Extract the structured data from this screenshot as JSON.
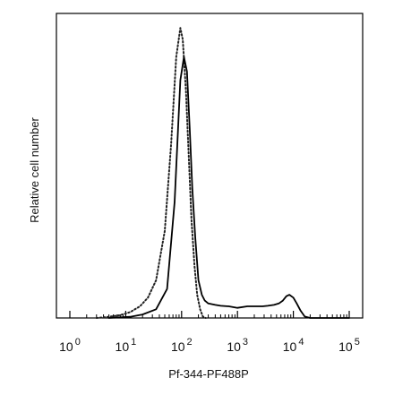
{
  "chart_data": {
    "type": "line",
    "title": "",
    "xlabel": "Pf-344-PF488P",
    "ylabel": "Relative cell number",
    "x_scale": "log",
    "xlim": [
      1,
      100000
    ],
    "ylim": [
      0,
      1.05
    ],
    "grid": false,
    "legend": "none",
    "x_ticks": [
      {
        "base": "10",
        "exp": "0"
      },
      {
        "base": "10",
        "exp": "1"
      },
      {
        "base": "10",
        "exp": "2"
      },
      {
        "base": "10",
        "exp": "3"
      },
      {
        "base": "10",
        "exp": "4"
      },
      {
        "base": "10",
        "exp": "5"
      }
    ],
    "series": [
      {
        "style": "dotted",
        "color": "#222222",
        "x": [
          3.0,
          5.0,
          8.0,
          12.0,
          18.0,
          25.0,
          35.0,
          50.0,
          65.0,
          80.0,
          95.0,
          105.0,
          120.0,
          135.0,
          150.0,
          170.0,
          190.0,
          215.0,
          240.0,
          270.0
        ],
        "y": [
          0.0,
          0.004,
          0.01,
          0.02,
          0.04,
          0.07,
          0.13,
          0.3,
          0.6,
          0.9,
          1.0,
          0.96,
          0.78,
          0.55,
          0.34,
          0.18,
          0.08,
          0.03,
          0.005,
          0.0
        ]
      },
      {
        "style": "solid",
        "color": "#000000",
        "x": [
          5.0,
          12.0,
          20.0,
          35.0,
          55.0,
          75.0,
          95.0,
          110.0,
          125.0,
          140.0,
          155.0,
          175.0,
          200.0,
          230.0,
          260.0,
          300.0,
          400.0,
          500.0,
          700.0,
          1000.0,
          1500.0,
          2000.0,
          2800.0,
          3500.0,
          4500.0,
          5500.0,
          6500.0,
          7500.0,
          8500.0,
          10000.0,
          11500.0,
          13500.0,
          16000.0,
          20000.0,
          26000.0,
          35000.0,
          50000.0,
          70000.0,
          100000.0
        ],
        "y": [
          0.0,
          0.004,
          0.012,
          0.03,
          0.1,
          0.4,
          0.82,
          0.9,
          0.85,
          0.65,
          0.45,
          0.28,
          0.13,
          0.08,
          0.06,
          0.05,
          0.045,
          0.042,
          0.04,
          0.035,
          0.04,
          0.04,
          0.04,
          0.042,
          0.045,
          0.05,
          0.06,
          0.075,
          0.08,
          0.07,
          0.05,
          0.025,
          0.005,
          0.0,
          0.0,
          0.0,
          0.0,
          0.0,
          0.0
        ]
      }
    ]
  }
}
